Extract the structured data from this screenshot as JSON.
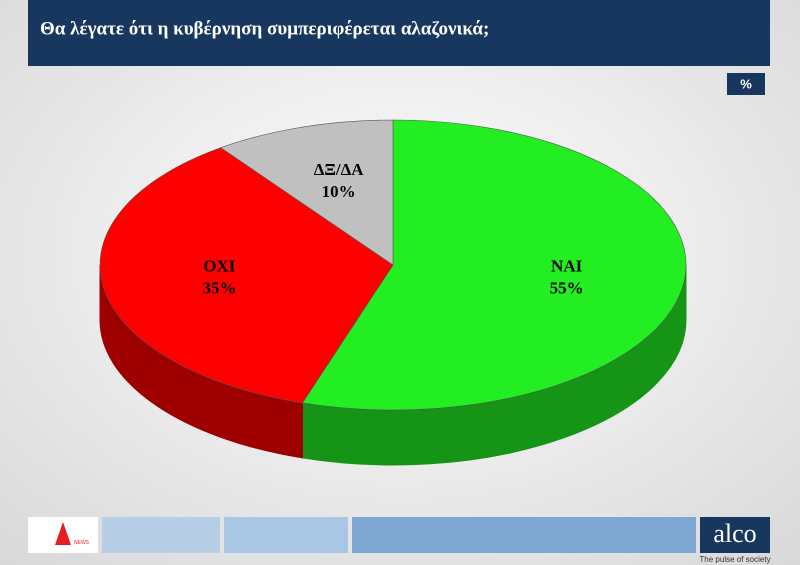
{
  "chart_data": {
    "type": "pie3d",
    "title": "Θα λέγατε ότι η κυβέρνηση συμπεριφέρεται αλαζονικά;",
    "unit": "%",
    "categories": [
      "NAI",
      "OXI",
      "ΔΞ/ΔΑ"
    ],
    "values": [
      55,
      35,
      10
    ],
    "value_labels": [
      "55%",
      "35%",
      "10%"
    ],
    "colors": [
      "#22ee22",
      "#ff0000",
      "#c0c0c0"
    ]
  },
  "footer": {
    "channel": "NEWS",
    "brand": "alco",
    "tagline": "The pulse of society"
  }
}
